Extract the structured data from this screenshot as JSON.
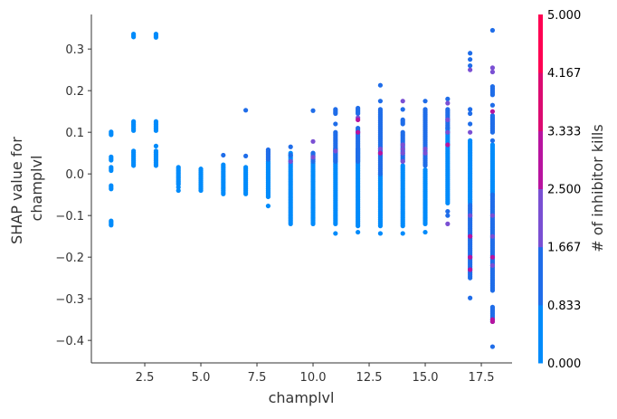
{
  "chart_data": {
    "type": "scatter",
    "xlabel": "champlvl",
    "ylabel_lines": [
      "SHAP value for",
      "champlvl"
    ],
    "xlim": [
      0.12,
      18.87
    ],
    "ylim": [
      -0.454,
      0.383
    ],
    "xticks": [
      2.5,
      5.0,
      7.5,
      10.0,
      12.5,
      15.0,
      17.5
    ],
    "xtick_labels": [
      "2.5",
      "5.0",
      "7.5",
      "10.0",
      "12.5",
      "15.0",
      "17.5"
    ],
    "yticks": [
      0.3,
      0.2,
      0.1,
      0.0,
      -0.1,
      -0.2,
      -0.3,
      -0.4
    ],
    "ytick_labels": [
      "0.3",
      "0.2",
      "0.1",
      "0.0",
      "−0.1",
      "−0.2",
      "−0.3",
      "−0.4"
    ],
    "grid": false,
    "colorbar": {
      "label": "# of inhibitor kills",
      "range": [
        0,
        5
      ],
      "tick_labels": [
        "0.000",
        "0.833",
        "1.667",
        "2.500",
        "3.333",
        "4.167",
        "5.000"
      ],
      "band_colors": [
        "#008bfb",
        "#1f6de9",
        "#7a4fd3",
        "#b8139f",
        "#dc0a71",
        "#ff0052"
      ]
    },
    "columns": [
      {
        "x": 1,
        "ranges": [
          [
            0.094,
            0.101,
            0
          ],
          [
            0.033,
            0.041,
            0
          ],
          [
            0.008,
            0.016,
            0
          ],
          [
            -0.036,
            -0.028,
            0
          ],
          [
            -0.123,
            -0.113,
            0
          ]
        ],
        "points": []
      },
      {
        "x": 2,
        "ranges": [
          [
            0.329,
            0.336,
            0
          ],
          [
            0.104,
            0.126,
            0
          ],
          [
            0.02,
            0.055,
            0
          ]
        ],
        "points": []
      },
      {
        "x": 3,
        "ranges": [
          [
            0.328,
            0.336,
            0
          ],
          [
            0.104,
            0.126,
            0
          ],
          [
            0.02,
            0.055,
            0
          ]
        ],
        "points": [
          [
            0.067,
            0
          ]
        ]
      },
      {
        "x": 4,
        "ranges": [
          [
            -0.025,
            0.016,
            0
          ]
        ],
        "points": [
          [
            -0.032,
            0
          ],
          [
            -0.04,
            0
          ]
        ]
      },
      {
        "x": 5,
        "ranges": [
          [
            -0.04,
            0.012,
            0
          ]
        ],
        "points": []
      },
      {
        "x": 6,
        "ranges": [
          [
            -0.048,
            0.022,
            0
          ]
        ],
        "points": [
          [
            0.045,
            1
          ]
        ]
      },
      {
        "x": 7,
        "ranges": [
          [
            -0.048,
            0.016,
            0
          ]
        ],
        "points": [
          [
            0.153,
            1
          ],
          [
            0.043,
            1
          ]
        ]
      },
      {
        "x": 8,
        "ranges": [
          [
            -0.055,
            0.03,
            0
          ],
          [
            0.035,
            0.058,
            1
          ]
        ],
        "points": [
          [
            -0.077,
            0
          ]
        ]
      },
      {
        "x": 9,
        "ranges": [
          [
            -0.12,
            0.05,
            0
          ]
        ],
        "points": [
          [
            0.065,
            1
          ],
          [
            0.045,
            1
          ],
          [
            0.03,
            2
          ]
        ]
      },
      {
        "x": 10,
        "ranges": [
          [
            -0.12,
            0.05,
            0
          ],
          [
            0.03,
            0.05,
            1
          ]
        ],
        "points": [
          [
            0.152,
            1
          ],
          [
            0.078,
            2
          ],
          [
            0.04,
            2
          ]
        ]
      },
      {
        "x": 11,
        "ranges": [
          [
            -0.12,
            0.06,
            0
          ],
          [
            0.03,
            0.1,
            1
          ],
          [
            0.145,
            0.155,
            1
          ]
        ],
        "points": [
          [
            0.12,
            1
          ],
          [
            0.055,
            2
          ],
          [
            -0.143,
            0
          ]
        ]
      },
      {
        "x": 12,
        "ranges": [
          [
            -0.125,
            0.06,
            0
          ],
          [
            0.03,
            0.11,
            1
          ],
          [
            0.145,
            0.158,
            1
          ]
        ],
        "points": [
          [
            0.135,
            2
          ],
          [
            0.13,
            3
          ],
          [
            0.1,
            3
          ],
          [
            -0.14,
            0
          ]
        ]
      },
      {
        "x": 13,
        "ranges": [
          [
            -0.125,
            0.0,
            0
          ],
          [
            0.0,
            0.155,
            1
          ]
        ],
        "points": [
          [
            0.213,
            1
          ],
          [
            0.175,
            1
          ],
          [
            0.06,
            2
          ],
          [
            0.05,
            3
          ],
          [
            -0.143,
            0
          ]
        ]
      },
      {
        "x": 14,
        "ranges": [
          [
            -0.125,
            0.02,
            0
          ],
          [
            0.03,
            0.1,
            1
          ],
          [
            0.12,
            0.13,
            1
          ]
        ],
        "points": [
          [
            0.175,
            2
          ],
          [
            0.155,
            1
          ],
          [
            0.07,
            2
          ],
          [
            0.06,
            2
          ],
          [
            0.05,
            2
          ],
          [
            0.03,
            2
          ],
          [
            -0.143,
            0
          ]
        ]
      },
      {
        "x": 15,
        "ranges": [
          [
            -0.12,
            0.01,
            0
          ],
          [
            0.02,
            0.155,
            1
          ]
        ],
        "points": [
          [
            0.175,
            1
          ],
          [
            0.06,
            2
          ],
          [
            0.05,
            2
          ],
          [
            -0.14,
            0
          ]
        ]
      },
      {
        "x": 16,
        "ranges": [
          [
            -0.07,
            0.11,
            0
          ],
          [
            0.11,
            0.155,
            1
          ]
        ],
        "points": [
          [
            0.18,
            1
          ],
          [
            0.17,
            2
          ],
          [
            0.13,
            2
          ],
          [
            0.1,
            2
          ],
          [
            0.07,
            3
          ],
          [
            -0.09,
            1
          ],
          [
            -0.1,
            1
          ],
          [
            -0.12,
            2
          ]
        ]
      },
      {
        "x": 17,
        "ranges": [
          [
            -0.07,
            0.08,
            0
          ],
          [
            -0.25,
            -0.075,
            1
          ]
        ],
        "points": [
          [
            0.29,
            1
          ],
          [
            0.275,
            1
          ],
          [
            0.26,
            1
          ],
          [
            0.25,
            2
          ],
          [
            0.155,
            1
          ],
          [
            0.145,
            1
          ],
          [
            0.12,
            1
          ],
          [
            0.1,
            2
          ],
          [
            -0.1,
            2
          ],
          [
            -0.15,
            3
          ],
          [
            -0.2,
            3
          ],
          [
            -0.23,
            3
          ],
          [
            -0.298,
            1
          ]
        ]
      },
      {
        "x": 18,
        "ranges": [
          [
            -0.05,
            0.07,
            0
          ],
          [
            -0.28,
            -0.05,
            1
          ],
          [
            -0.355,
            -0.32,
            1
          ],
          [
            0.19,
            0.21,
            1
          ],
          [
            0.1,
            0.14,
            1
          ]
        ],
        "points": [
          [
            0.345,
            1
          ],
          [
            0.255,
            2
          ],
          [
            0.245,
            2
          ],
          [
            0.165,
            1
          ],
          [
            0.15,
            3
          ],
          [
            0.08,
            1
          ],
          [
            -0.1,
            2
          ],
          [
            -0.15,
            2
          ],
          [
            -0.2,
            3
          ],
          [
            -0.22,
            2
          ],
          [
            -0.35,
            3
          ],
          [
            -0.355,
            3
          ],
          [
            -0.415,
            1
          ]
        ]
      }
    ]
  }
}
